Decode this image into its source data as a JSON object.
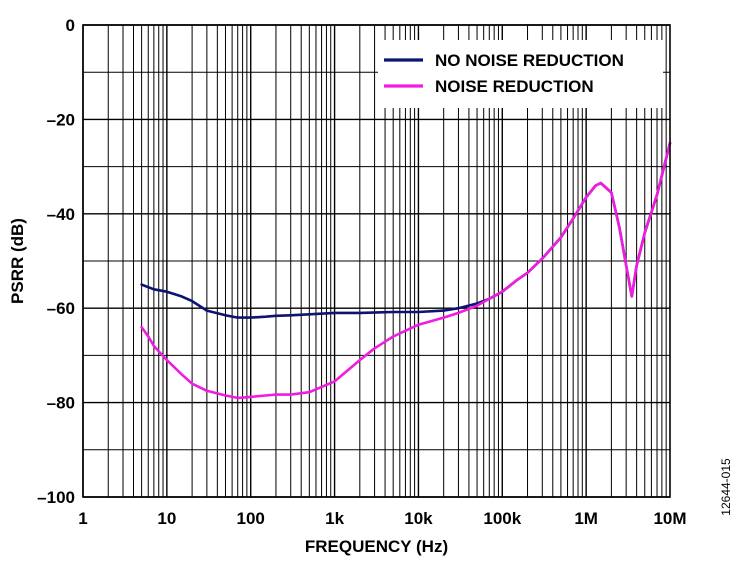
{
  "chart_data": {
    "type": "line",
    "xlabel": "FREQUENCY (Hz)",
    "ylabel": "PSRR (dB)",
    "x_scale": "log",
    "xlim": [
      1,
      10000000
    ],
    "ylim": [
      -100,
      0
    ],
    "x_ticks": [
      {
        "value": 1,
        "label": "1"
      },
      {
        "value": 10,
        "label": "10"
      },
      {
        "value": 100,
        "label": "100"
      },
      {
        "value": 1000,
        "label": "1k"
      },
      {
        "value": 10000,
        "label": "10k"
      },
      {
        "value": 100000,
        "label": "100k"
      },
      {
        "value": 1000000,
        "label": "1M"
      },
      {
        "value": 10000000,
        "label": "10M"
      }
    ],
    "y_ticks": [
      {
        "value": 0,
        "label": "0"
      },
      {
        "value": -20,
        "label": "–20"
      },
      {
        "value": -40,
        "label": "–40"
      },
      {
        "value": -60,
        "label": "–60"
      },
      {
        "value": -80,
        "label": "–80"
      },
      {
        "value": -100,
        "label": "–100"
      }
    ],
    "grid": true,
    "legend_position": "top-right",
    "figure_id": "12644-015",
    "series": [
      {
        "name": "NO NOISE REDUCTION",
        "color": "#0d1470",
        "x": [
          5,
          7,
          10,
          15,
          20,
          30,
          50,
          70,
          100,
          150,
          200,
          300,
          500,
          1000,
          2000,
          5000,
          10000,
          20000,
          30000,
          50000,
          70000,
          100000,
          150000,
          200000,
          300000,
          500000,
          700000,
          1000000,
          1300000,
          1500000,
          2000000,
          2500000,
          3000000,
          3500000,
          4000000,
          5000000,
          7000000,
          10000000
        ],
        "values": [
          -55,
          -56,
          -56.5,
          -57.5,
          -58.5,
          -60.5,
          -61.5,
          -62,
          -62,
          -61.8,
          -61.6,
          -61.5,
          -61.3,
          -61,
          -61,
          -60.8,
          -60.8,
          -60.5,
          -60,
          -59,
          -58,
          -56.5,
          -54,
          -52.5,
          -49.5,
          -45,
          -41,
          -36.5,
          -34,
          -33.5,
          -35.5,
          -43,
          -51,
          -57.5,
          -51,
          -44,
          -36,
          -25
        ]
      },
      {
        "name": "NOISE REDUCTION",
        "color": "#f01ce0",
        "x": [
          5,
          6,
          7,
          10,
          15,
          20,
          30,
          50,
          70,
          100,
          150,
          200,
          300,
          500,
          1000,
          2000,
          3000,
          5000,
          10000,
          20000,
          30000,
          50000,
          70000,
          100000,
          150000,
          200000,
          300000,
          500000,
          700000,
          1000000,
          1300000,
          1500000,
          2000000,
          2500000,
          3000000,
          3500000,
          4000000,
          5000000,
          7000000,
          10000000
        ],
        "values": [
          -64,
          -66,
          -68,
          -71,
          -74,
          -76,
          -77.5,
          -78.5,
          -79,
          -78.8,
          -78.5,
          -78.3,
          -78.3,
          -77.8,
          -75.5,
          -71,
          -68.5,
          -66,
          -63.5,
          -62,
          -61,
          -59.5,
          -58,
          -56.5,
          -54,
          -52.5,
          -49.5,
          -45,
          -41,
          -36.5,
          -34,
          -33.5,
          -35.5,
          -43,
          -51,
          -57.5,
          -51,
          -44,
          -36,
          -25
        ]
      }
    ]
  }
}
